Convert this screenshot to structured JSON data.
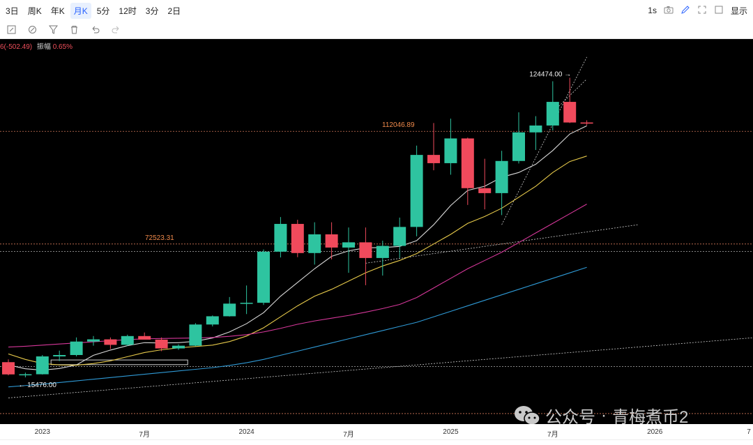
{
  "topbar": {
    "intervals": [
      "3日",
      "周K",
      "年K",
      "月K",
      "5分",
      "12时",
      "3分",
      "2日"
    ],
    "active": "月K",
    "speed": "1s",
    "display_label": "显示"
  },
  "toolbar": {
    "tools": [
      "edit-icon",
      "brush-icon",
      "filter-icon",
      "trash-icon",
      "undo-icon",
      "redo-icon"
    ]
  },
  "info": {
    "change": "6(-502.49)",
    "amplitude_label": "振幅",
    "amplitude_value": "0.65%"
  },
  "watermark": {
    "brand": "公众号",
    "sep": "·",
    "name": "青梅煮币2"
  },
  "chart_data": {
    "type": "candlestick",
    "title": "",
    "period": "monthly",
    "ylim": [
      0,
      135000
    ],
    "x_ticks": [
      {
        "label": "2023",
        "index": 2
      },
      {
        "label": "7月",
        "index": 8
      },
      {
        "label": "2024",
        "index": 14
      },
      {
        "label": "7月",
        "index": 20
      },
      {
        "label": "2025",
        "index": 26
      },
      {
        "label": "7月",
        "index": 32
      },
      {
        "label": "2026",
        "index": 38
      },
      {
        "label": "7",
        "index": 44
      }
    ],
    "candles": [
      {
        "o": 21000,
        "h": 22000,
        "l": 16200,
        "c": 16550
      },
      {
        "o": 16550,
        "h": 17200,
        "l": 15476,
        "c": 16600
      },
      {
        "o": 16600,
        "h": 23600,
        "l": 16500,
        "c": 23100
      },
      {
        "o": 23100,
        "h": 25200,
        "l": 21400,
        "c": 23600
      },
      {
        "o": 23600,
        "h": 30000,
        "l": 23100,
        "c": 28500
      },
      {
        "o": 28500,
        "h": 30500,
        "l": 27000,
        "c": 29300
      },
      {
        "o": 29300,
        "h": 30000,
        "l": 25800,
        "c": 27300
      },
      {
        "o": 27300,
        "h": 31000,
        "l": 26900,
        "c": 30500
      },
      {
        "o": 30500,
        "h": 31800,
        "l": 29300,
        "c": 29200
      },
      {
        "o": 29200,
        "h": 30000,
        "l": 25000,
        "c": 26000
      },
      {
        "o": 26000,
        "h": 27500,
        "l": 25500,
        "c": 27000
      },
      {
        "o": 27000,
        "h": 35200,
        "l": 26800,
        "c": 34700
      },
      {
        "o": 34700,
        "h": 38000,
        "l": 34000,
        "c": 37700
      },
      {
        "o": 37700,
        "h": 44700,
        "l": 37600,
        "c": 42300
      },
      {
        "o": 42300,
        "h": 48900,
        "l": 38500,
        "c": 42600
      },
      {
        "o": 42600,
        "h": 62000,
        "l": 41800,
        "c": 61200
      },
      {
        "o": 61200,
        "h": 73800,
        "l": 59100,
        "c": 71300
      },
      {
        "o": 71300,
        "h": 72800,
        "l": 59200,
        "c": 60700
      },
      {
        "o": 60700,
        "h": 71900,
        "l": 56500,
        "c": 67500
      },
      {
        "o": 67500,
        "h": 71900,
        "l": 58400,
        "c": 62700
      },
      {
        "o": 62700,
        "h": 70000,
        "l": 53500,
        "c": 64600
      },
      {
        "o": 64600,
        "h": 70000,
        "l": 49000,
        "c": 58900
      },
      {
        "o": 58900,
        "h": 65200,
        "l": 52500,
        "c": 63300
      },
      {
        "o": 63300,
        "h": 73600,
        "l": 58900,
        "c": 70200
      },
      {
        "o": 70200,
        "h": 99800,
        "l": 66800,
        "c": 96400
      },
      {
        "o": 96400,
        "h": 108000,
        "l": 90800,
        "c": 93400
      },
      {
        "o": 93400,
        "h": 109600,
        "l": 89200,
        "c": 102400
      },
      {
        "o": 102400,
        "h": 102700,
        "l": 78200,
        "c": 84300
      },
      {
        "o": 84300,
        "h": 95000,
        "l": 76600,
        "c": 82500
      },
      {
        "o": 82500,
        "h": 97900,
        "l": 74500,
        "c": 94200
      },
      {
        "o": 94200,
        "h": 111900,
        "l": 93300,
        "c": 104600
      },
      {
        "o": 104600,
        "h": 110500,
        "l": 98200,
        "c": 107100
      },
      {
        "o": 107100,
        "h": 123200,
        "l": 105300,
        "c": 115700
      },
      {
        "o": 115700,
        "h": 124474,
        "l": 108000,
        "c": 108200
      },
      {
        "o": 108200,
        "h": 109000,
        "l": 107200,
        "c": 107800
      }
    ],
    "ma": [
      {
        "name": "",
        "color": "#d9d9d9",
        "values": [
          20000,
          18600,
          18100,
          18700,
          20000,
          23500,
          25400,
          27000,
          28100,
          28000,
          28100,
          28600,
          29800,
          32000,
          35000,
          39000,
          45000,
          50000,
          55000,
          59500,
          61500,
          62600,
          62700,
          63100,
          65200,
          71000,
          78000,
          83500,
          85000,
          88300,
          90000,
          93000,
          98000,
          104000,
          107000
        ]
      },
      {
        "name": "",
        "color": "#e6c94a",
        "values": [
          24000,
          22000,
          20500,
          20000,
          19900,
          20500,
          21500,
          23000,
          24500,
          25500,
          26200,
          26700,
          27200,
          28500,
          30500,
          33500,
          37500,
          41500,
          45000,
          47500,
          50500,
          53500,
          56000,
          58000,
          60500,
          64000,
          67500,
          71500,
          74000,
          77000,
          81000,
          85000,
          90000,
          94000,
          96000
        ]
      },
      {
        "name": "",
        "color": "#d6379a",
        "values": [
          26500,
          26800,
          27200,
          27600,
          28000,
          28400,
          28800,
          29200,
          29500,
          29600,
          29700,
          29800,
          30000,
          30400,
          31000,
          32000,
          33300,
          34800,
          36000,
          37000,
          38000,
          39200,
          40500,
          42000,
          44500,
          48000,
          51500,
          55000,
          58000,
          61000,
          64500,
          68000,
          71500,
          75000,
          78500
        ]
      },
      {
        "name": "",
        "color": "#2f9ad6",
        "values": [
          12000,
          12500,
          13000,
          13600,
          14200,
          14800,
          15400,
          16000,
          16600,
          17200,
          17800,
          18400,
          19000,
          19800,
          20800,
          22000,
          23500,
          25000,
          26500,
          28000,
          29500,
          31000,
          32500,
          34000,
          35500,
          37500,
          39500,
          41500,
          43500,
          45500,
          47500,
          49500,
          51500,
          53500,
          55500
        ]
      }
    ],
    "levels": [
      {
        "label": "112046.89",
        "value": 105000
      },
      {
        "label": "72523.31",
        "value": 64000
      },
      {
        "label": "",
        "value": 61300
      },
      {
        "label": "",
        "value": 19400
      },
      {
        "label": "",
        "value": 2300
      }
    ],
    "annotations": [
      {
        "label": "124474.00",
        "index": 33,
        "value": 124474
      },
      {
        "label": "15476.00",
        "index": 1,
        "value": 15476
      }
    ],
    "up_color": "#2ec4a0",
    "down_color": "#f04a5c",
    "grid": false
  }
}
